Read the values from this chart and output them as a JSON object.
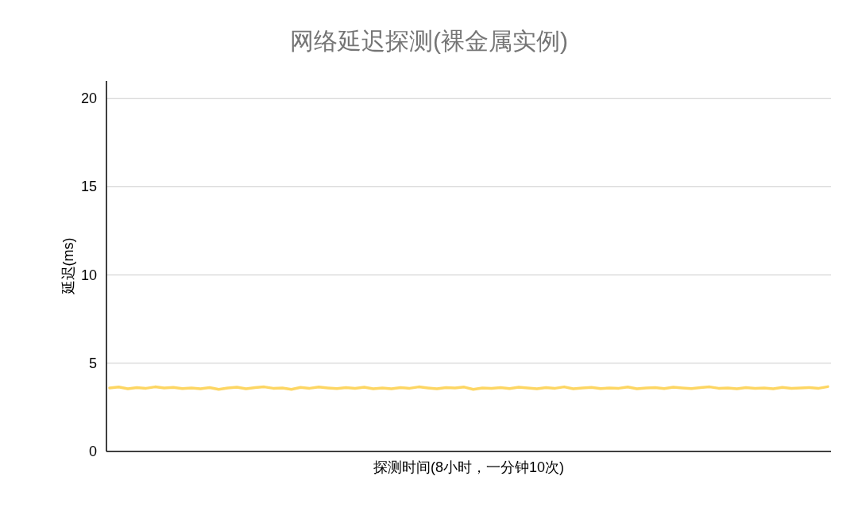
{
  "chart_data": {
    "type": "line",
    "title": "网络延迟探测(裸金属实例)",
    "xlabel": "探测时间(8小时，一分钟10次)",
    "ylabel": "延迟(ms)",
    "categories": [
      null,
      null,
      null,
      null,
      null,
      null,
      null,
      null,
      null,
      null,
      null,
      null,
      null,
      null,
      null,
      null,
      null,
      null,
      null,
      null,
      null,
      null,
      null,
      null,
      null,
      null,
      null,
      null,
      null,
      null,
      null,
      null,
      null,
      null,
      null,
      null,
      null,
      null,
      null,
      null,
      null,
      null,
      null,
      null,
      null,
      null,
      null,
      null,
      null,
      null,
      null,
      null,
      null,
      null,
      null,
      null,
      null,
      null,
      null,
      null,
      null,
      null,
      null,
      null,
      null,
      null,
      null,
      null,
      null,
      null,
      null,
      null,
      null,
      null,
      null,
      null,
      null,
      null,
      null,
      null
    ],
    "series": [
      {
        "color": "#fdd663",
        "values": [
          3.6,
          3.65,
          3.55,
          3.62,
          3.58,
          3.66,
          3.6,
          3.63,
          3.56,
          3.6,
          3.55,
          3.62,
          3.52,
          3.6,
          3.64,
          3.55,
          3.62,
          3.66,
          3.58,
          3.6,
          3.52,
          3.63,
          3.58,
          3.65,
          3.6,
          3.56,
          3.62,
          3.58,
          3.64,
          3.55,
          3.6,
          3.55,
          3.62,
          3.58,
          3.66,
          3.6,
          3.55,
          3.62,
          3.6,
          3.65,
          3.52,
          3.6,
          3.58,
          3.62,
          3.56,
          3.64,
          3.6,
          3.55,
          3.62,
          3.58,
          3.66,
          3.55,
          3.6,
          3.63,
          3.56,
          3.6,
          3.58,
          3.65,
          3.55,
          3.6,
          3.62,
          3.56,
          3.64,
          3.6,
          3.56,
          3.62,
          3.66,
          3.58,
          3.6,
          3.55,
          3.62,
          3.58,
          3.6,
          3.55,
          3.63,
          3.58,
          3.6,
          3.62,
          3.58,
          3.67
        ]
      }
    ],
    "ylim": [
      0,
      21
    ],
    "yticks": [
      0,
      5,
      10,
      15,
      20
    ],
    "grid": "y",
    "marker": "none",
    "line_style": "solid"
  }
}
